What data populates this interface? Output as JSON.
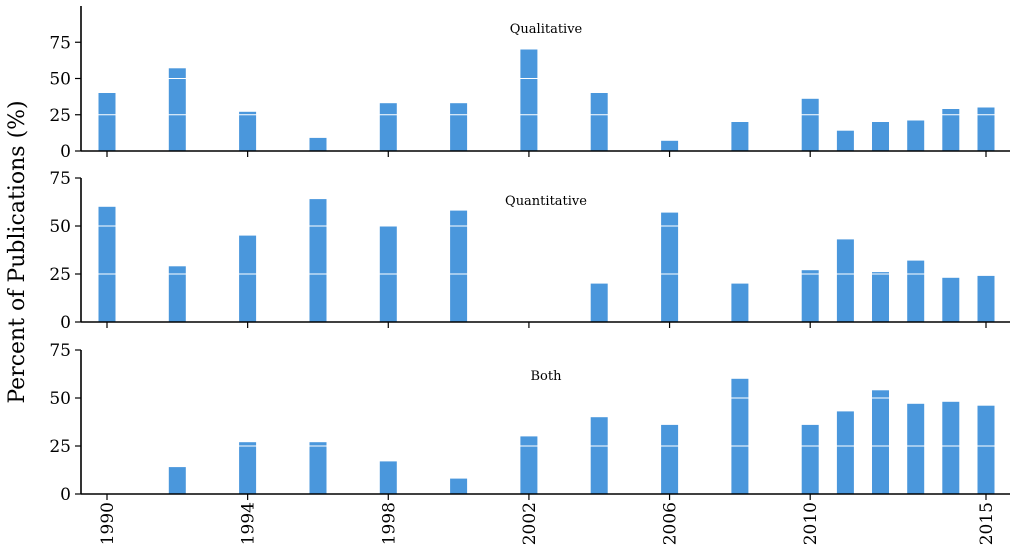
{
  "chart_data": {
    "type": "bar",
    "ylabel": "Percent of Publications (%)",
    "x": [
      1990,
      1992,
      1994,
      1996,
      1998,
      2000,
      2002,
      2004,
      2006,
      2008,
      2010,
      2011,
      2012,
      2013,
      2014,
      2015
    ],
    "x_ticks": [
      1990,
      1994,
      1998,
      2002,
      2006,
      2010,
      2015
    ],
    "bar_color": "#4a97dc",
    "panels": [
      {
        "title": "Qualitative",
        "ylim": [
          0,
          100
        ],
        "y_ticks": [
          0,
          25,
          50,
          75
        ],
        "values": [
          40,
          57,
          27,
          9,
          33,
          33,
          70,
          40,
          7,
          20,
          36,
          14,
          20,
          21,
          29,
          30
        ]
      },
      {
        "title": "Quantitative",
        "ylim": [
          0,
          75
        ],
        "y_ticks": [
          0,
          25,
          50,
          75
        ],
        "values": [
          60,
          29,
          45,
          64,
          50,
          58,
          0,
          20,
          57,
          20,
          27,
          43,
          26,
          32,
          23,
          24
        ]
      },
      {
        "title": "Both",
        "ylim": [
          0,
          75
        ],
        "y_ticks": [
          0,
          25,
          50,
          75
        ],
        "values": [
          0,
          14,
          27,
          27,
          17,
          8,
          30,
          40,
          36,
          60,
          36,
          43,
          54,
          47,
          48,
          46
        ]
      }
    ]
  }
}
